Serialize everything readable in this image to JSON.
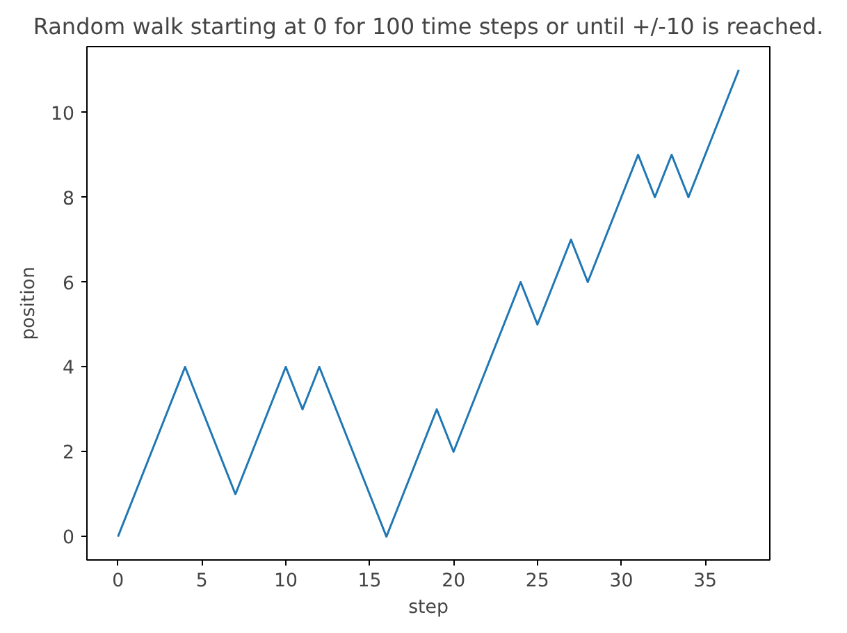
{
  "chart_data": {
    "type": "line",
    "title": "Random walk starting at 0 for 100 time steps or until +/-10 is reached.",
    "xlabel": "step",
    "ylabel": "position",
    "x": [
      0,
      1,
      2,
      3,
      4,
      5,
      6,
      7,
      8,
      9,
      10,
      11,
      12,
      13,
      14,
      15,
      16,
      17,
      18,
      19,
      20,
      21,
      22,
      23,
      24,
      25,
      26,
      27,
      28,
      29,
      30,
      31,
      32,
      33,
      34,
      35,
      36,
      37
    ],
    "series": [
      {
        "color": "#1f77b4",
        "values": [
          0,
          1,
          2,
          3,
          4,
          3,
          2,
          1,
          2,
          3,
          4,
          3,
          4,
          3,
          2,
          1,
          0,
          1,
          2,
          3,
          2,
          3,
          4,
          5,
          6,
          5,
          6,
          7,
          6,
          7,
          8,
          9,
          8,
          9,
          8,
          9,
          10,
          11
        ]
      }
    ],
    "xlim": [
      -1.85,
      38.85
    ],
    "ylim": [
      -0.55,
      11.55
    ],
    "xticks": [
      0,
      5,
      10,
      15,
      20,
      25,
      30,
      35
    ],
    "yticks": [
      0,
      2,
      4,
      6,
      8,
      10
    ],
    "grid": false,
    "line_style": "solid"
  }
}
